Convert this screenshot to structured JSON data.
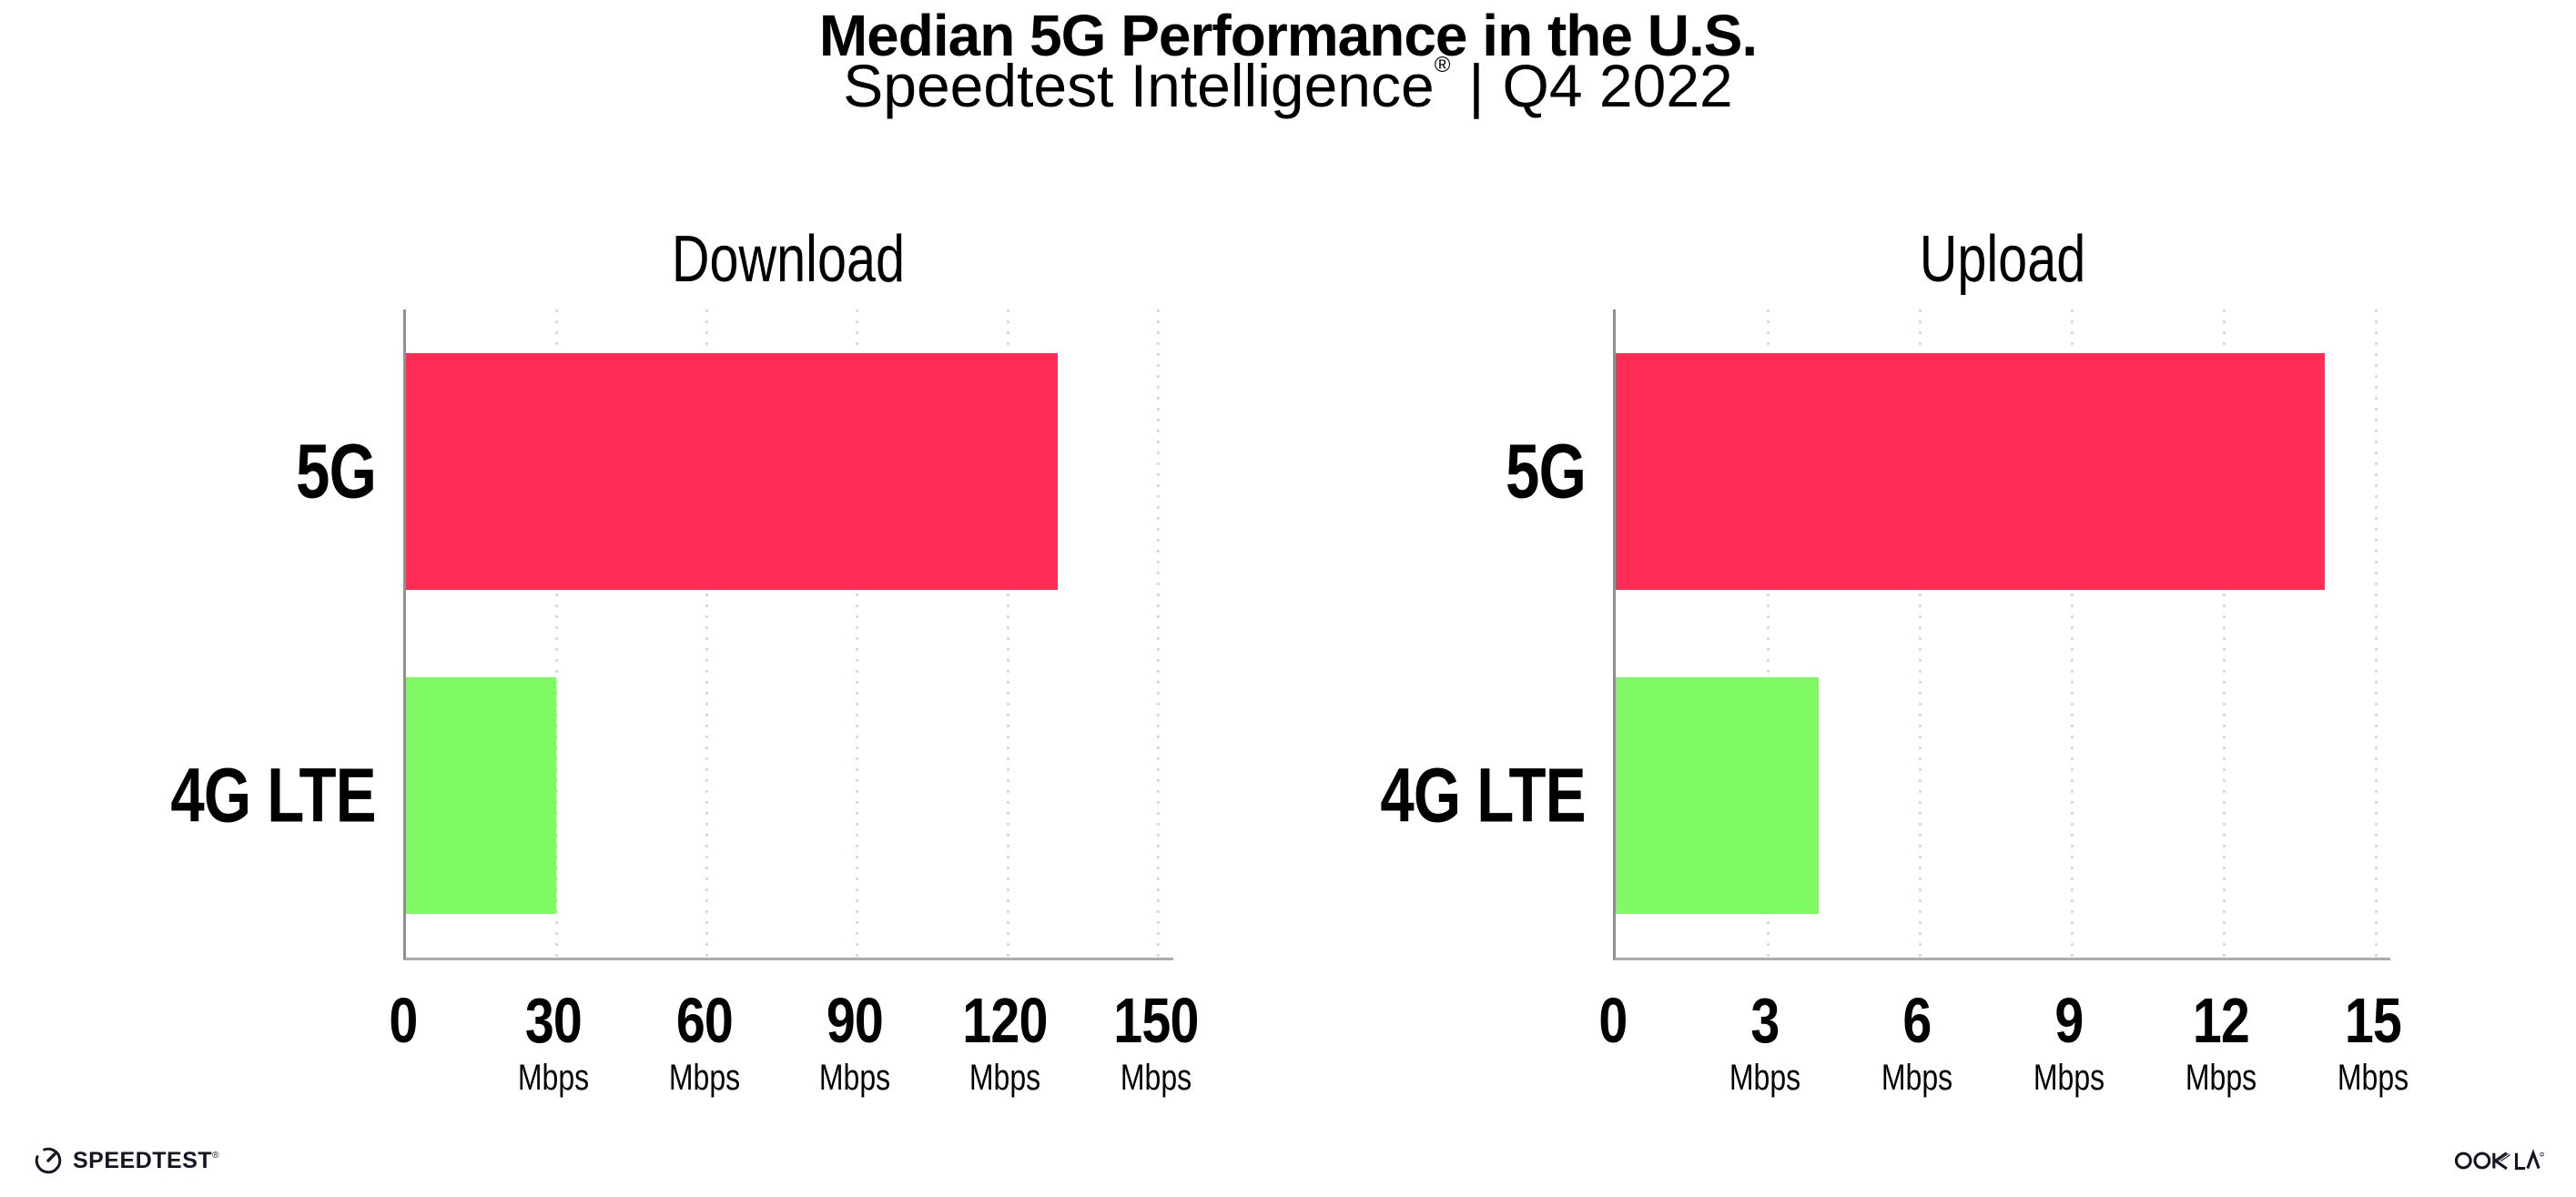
{
  "header": {
    "title": "Median 5G Performance in the U.S.",
    "subtitle_brand": "Speedtest Intelligence",
    "subtitle_registered_mark": "®",
    "subtitle_divider": "|",
    "subtitle_period": "Q4 2022"
  },
  "chart_data": [
    {
      "type": "bar",
      "orientation": "horizontal",
      "title": "Download",
      "categories": [
        "5G",
        "4G LTE"
      ],
      "values": [
        130,
        30
      ],
      "unit": "Mbps",
      "xticks": [
        0,
        30,
        60,
        90,
        120,
        150
      ],
      "xlim": [
        0,
        150
      ],
      "bar_colors": [
        "#ff2d55",
        "#80fa64"
      ],
      "grid": "dotted-vertical",
      "legend": "none"
    },
    {
      "type": "bar",
      "orientation": "horizontal",
      "title": "Upload",
      "categories": [
        "5G",
        "4G LTE"
      ],
      "values": [
        14,
        4
      ],
      "unit": "Mbps",
      "xticks": [
        0,
        3,
        6,
        9,
        12,
        15
      ],
      "xlim": [
        0,
        15
      ],
      "bar_colors": [
        "#ff2d55",
        "#80fa64"
      ],
      "grid": "dotted-vertical",
      "legend": "none"
    }
  ],
  "footer": {
    "speedtest_label": "SPEEDTEST",
    "speedtest_registered_mark": "®",
    "ookla_label": "OOKLA"
  },
  "colors": {
    "bar_5g": "#ff2d55",
    "bar_4g_lte": "#80fa64",
    "grid_dot": "#d9d9e3",
    "axis_line": "#a5a5a5",
    "text": "#000000",
    "logo_text": "#141526"
  }
}
